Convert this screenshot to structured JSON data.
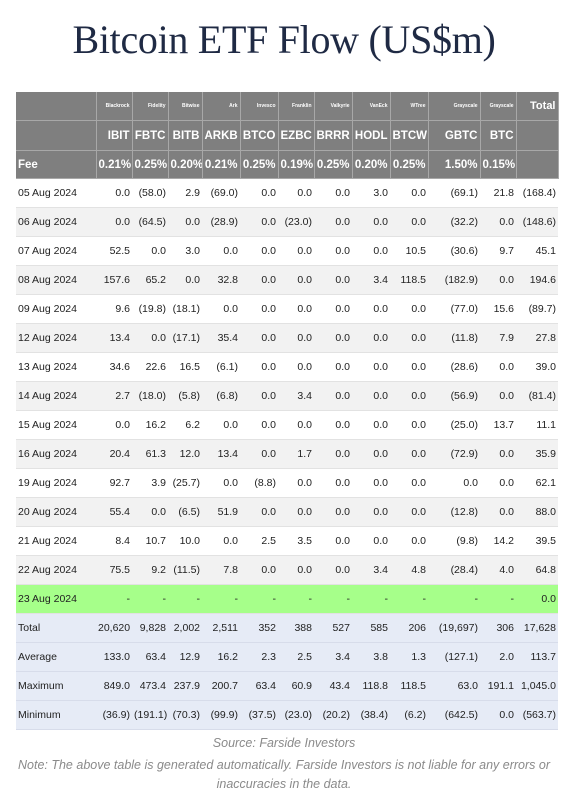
{
  "title": "Bitcoin ETF Flow (US$m)",
  "issuers": [
    "Blackrock",
    "Fidelity",
    "Bitwise",
    "Ark",
    "Invesco",
    "Franklin",
    "Valkyrie",
    "VanEck",
    "WTree",
    "Grayscale",
    "Grayscale"
  ],
  "total_label": "Total",
  "tickers": [
    "IBIT",
    "FBTC",
    "BITB",
    "ARKB",
    "BTCO",
    "EZBC",
    "BRRR",
    "HODL",
    "BTCW",
    "GBTC",
    "BTC"
  ],
  "fee_label": "Fee",
  "fees": [
    "0.21%",
    "0.25%",
    "0.20%",
    "0.21%",
    "0.25%",
    "0.19%",
    "0.25%",
    "0.20%",
    "0.25%",
    "1.50%",
    "0.15%"
  ],
  "rows": [
    {
      "date": "05 Aug 2024",
      "values": [
        "0.0",
        "(58.0)",
        "2.9",
        "(69.0)",
        "0.0",
        "0.0",
        "0.0",
        "3.0",
        "0.0",
        "(69.1)",
        "21.8"
      ],
      "total": "(168.4)"
    },
    {
      "date": "06 Aug 2024",
      "values": [
        "0.0",
        "(64.5)",
        "0.0",
        "(28.9)",
        "0.0",
        "(23.0)",
        "0.0",
        "0.0",
        "0.0",
        "(32.2)",
        "0.0"
      ],
      "total": "(148.6)"
    },
    {
      "date": "07 Aug 2024",
      "values": [
        "52.5",
        "0.0",
        "3.0",
        "0.0",
        "0.0",
        "0.0",
        "0.0",
        "0.0",
        "10.5",
        "(30.6)",
        "9.7"
      ],
      "total": "45.1"
    },
    {
      "date": "08 Aug 2024",
      "values": [
        "157.6",
        "65.2",
        "0.0",
        "32.8",
        "0.0",
        "0.0",
        "0.0",
        "3.4",
        "118.5",
        "(182.9)",
        "0.0"
      ],
      "total": "194.6"
    },
    {
      "date": "09 Aug 2024",
      "values": [
        "9.6",
        "(19.8)",
        "(18.1)",
        "0.0",
        "0.0",
        "0.0",
        "0.0",
        "0.0",
        "0.0",
        "(77.0)",
        "15.6"
      ],
      "total": "(89.7)"
    },
    {
      "date": "12 Aug 2024",
      "values": [
        "13.4",
        "0.0",
        "(17.1)",
        "35.4",
        "0.0",
        "0.0",
        "0.0",
        "0.0",
        "0.0",
        "(11.8)",
        "7.9"
      ],
      "total": "27.8"
    },
    {
      "date": "13 Aug 2024",
      "values": [
        "34.6",
        "22.6",
        "16.5",
        "(6.1)",
        "0.0",
        "0.0",
        "0.0",
        "0.0",
        "0.0",
        "(28.6)",
        "0.0"
      ],
      "total": "39.0"
    },
    {
      "date": "14 Aug 2024",
      "values": [
        "2.7",
        "(18.0)",
        "(5.8)",
        "(6.8)",
        "0.0",
        "3.4",
        "0.0",
        "0.0",
        "0.0",
        "(56.9)",
        "0.0"
      ],
      "total": "(81.4)"
    },
    {
      "date": "15 Aug 2024",
      "values": [
        "0.0",
        "16.2",
        "6.2",
        "0.0",
        "0.0",
        "0.0",
        "0.0",
        "0.0",
        "0.0",
        "(25.0)",
        "13.7"
      ],
      "total": "11.1"
    },
    {
      "date": "16 Aug 2024",
      "values": [
        "20.4",
        "61.3",
        "12.0",
        "13.4",
        "0.0",
        "1.7",
        "0.0",
        "0.0",
        "0.0",
        "(72.9)",
        "0.0"
      ],
      "total": "35.9"
    },
    {
      "date": "19 Aug 2024",
      "values": [
        "92.7",
        "3.9",
        "(25.7)",
        "0.0",
        "(8.8)",
        "0.0",
        "0.0",
        "0.0",
        "0.0",
        "0.0",
        "0.0"
      ],
      "total": "62.1"
    },
    {
      "date": "20 Aug 2024",
      "values": [
        "55.4",
        "0.0",
        "(6.5)",
        "51.9",
        "0.0",
        "0.0",
        "0.0",
        "0.0",
        "0.0",
        "(12.8)",
        "0.0"
      ],
      "total": "88.0"
    },
    {
      "date": "21 Aug 2024",
      "values": [
        "8.4",
        "10.7",
        "10.0",
        "0.0",
        "2.5",
        "3.5",
        "0.0",
        "0.0",
        "0.0",
        "(9.8)",
        "14.2"
      ],
      "total": "39.5"
    },
    {
      "date": "22 Aug 2024",
      "values": [
        "75.5",
        "9.2",
        "(11.5)",
        "7.8",
        "0.0",
        "0.0",
        "0.0",
        "3.4",
        "4.8",
        "(28.4)",
        "4.0"
      ],
      "total": "64.8"
    },
    {
      "date": "23 Aug 2024",
      "values": [
        "-",
        "-",
        "-",
        "-",
        "-",
        "-",
        "-",
        "-",
        "-",
        "-",
        "-"
      ],
      "total": "0.0",
      "highlight": true
    }
  ],
  "summary": [
    {
      "label": "Total",
      "values": [
        "20,620",
        "9,828",
        "2,002",
        "2,511",
        "352",
        "388",
        "527",
        "585",
        "206",
        "(19,697)",
        "306"
      ],
      "total": "17,628"
    },
    {
      "label": "Average",
      "values": [
        "133.0",
        "63.4",
        "12.9",
        "16.2",
        "2.3",
        "2.5",
        "3.4",
        "3.8",
        "1.3",
        "(127.1)",
        "2.0"
      ],
      "total": "113.7"
    },
    {
      "label": "Maximum",
      "values": [
        "849.0",
        "473.4",
        "237.9",
        "200.7",
        "63.4",
        "60.9",
        "43.4",
        "118.8",
        "118.5",
        "63.0",
        "191.1"
      ],
      "total": "1,045.0"
    },
    {
      "label": "Minimum",
      "values": [
        "(36.9)",
        "(191.1)",
        "(70.3)",
        "(99.9)",
        "(37.5)",
        "(23.0)",
        "(20.2)",
        "(38.4)",
        "(6.2)",
        "(642.5)",
        "0.0"
      ],
      "total": "(563.7)"
    }
  ],
  "source": "Source: Farside Investors",
  "note": "Note: The above table is generated automatically. Farside Investors is not liable for any errors or inaccuracies in the data."
}
